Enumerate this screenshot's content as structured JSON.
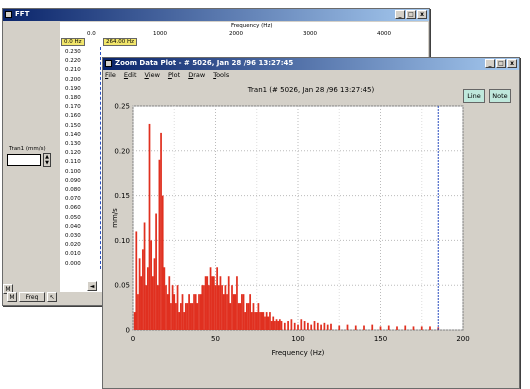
{
  "fft_window": {
    "title": "FFT",
    "controls": {
      "min": "_",
      "max": "□",
      "close": "x"
    },
    "x_axis_label": "Frequency (Hz)",
    "x_ticks": [
      "0.0",
      "1000",
      "2000",
      "3000",
      "4000"
    ],
    "cursor_left": "0.0 Hz",
    "cursor_right": "264.00 Hz",
    "y_ticks": [
      "0.230",
      "0.220",
      "0.210",
      "0.200",
      "0.190",
      "0.180",
      "0.170",
      "0.160",
      "0.150",
      "0.140",
      "0.130",
      "0.120",
      "0.110",
      "0.100",
      "0.090",
      "0.080",
      "0.070",
      "0.060",
      "0.050",
      "0.040",
      "0.030",
      "0.020",
      "0.010",
      "0.000"
    ],
    "y_top_box": "0.230",
    "y_bottom_box": "0.000",
    "channel_label": "Tran1 (mm/s)",
    "freq_button": "Freq"
  },
  "zoom_window": {
    "title": "Zoom Data Plot - # 5026, Jan 28 /96 13:27:45",
    "controls": {
      "min": "_",
      "max": "□",
      "close": "x"
    },
    "menu": [
      "File",
      "Edit",
      "View",
      "Plot",
      "Draw",
      "Tools"
    ],
    "plot_title": "Tran1   (# 5026, Jan 28 /96 13:27:45)",
    "buttons": {
      "line": "Line",
      "note": "Note"
    }
  },
  "chart_data": {
    "type": "bar",
    "xlabel": "Frequency (Hz)",
    "ylabel": "mm/s",
    "xlim": [
      0,
      200
    ],
    "ylim": [
      0,
      0.25
    ],
    "x_ticks": [
      0,
      50,
      100,
      150,
      200
    ],
    "y_ticks": [
      "0",
      "0.05",
      "0.10",
      "0.15",
      "0.20",
      "0.25"
    ],
    "grid": true,
    "color": "#e03020",
    "cursor_x": 185,
    "x": [
      1,
      2,
      3,
      4,
      5,
      6,
      7,
      8,
      9,
      10,
      11,
      12,
      13,
      14,
      15,
      16,
      17,
      18,
      19,
      20,
      21,
      22,
      23,
      24,
      25,
      26,
      27,
      28,
      29,
      30,
      31,
      32,
      33,
      34,
      35,
      36,
      37,
      38,
      39,
      40,
      41,
      42,
      43,
      44,
      45,
      46,
      47,
      48,
      49,
      50,
      51,
      52,
      53,
      54,
      55,
      56,
      57,
      58,
      59,
      60,
      61,
      62,
      63,
      64,
      65,
      66,
      67,
      68,
      69,
      70,
      71,
      72,
      73,
      74,
      75,
      76,
      77,
      78,
      79,
      80,
      81,
      82,
      83,
      84,
      85,
      86,
      87,
      88,
      89,
      90,
      92,
      94,
      96,
      98,
      100,
      102,
      104,
      106,
      108,
      110,
      112,
      114,
      116,
      118,
      120,
      125,
      130,
      135,
      140,
      145,
      150,
      155,
      160,
      165,
      170,
      175,
      180,
      185
    ],
    "values": [
      0.02,
      0.11,
      0.04,
      0.08,
      0.06,
      0.09,
      0.12,
      0.05,
      0.07,
      0.23,
      0.1,
      0.06,
      0.08,
      0.13,
      0.05,
      0.19,
      0.22,
      0.15,
      0.07,
      0.05,
      0.04,
      0.06,
      0.03,
      0.05,
      0.04,
      0.03,
      0.05,
      0.02,
      0.03,
      0.04,
      0.02,
      0.03,
      0.03,
      0.04,
      0.03,
      0.03,
      0.04,
      0.04,
      0.03,
      0.04,
      0.04,
      0.05,
      0.05,
      0.06,
      0.06,
      0.05,
      0.07,
      0.06,
      0.06,
      0.05,
      0.07,
      0.05,
      0.06,
      0.05,
      0.04,
      0.05,
      0.04,
      0.06,
      0.03,
      0.05,
      0.04,
      0.04,
      0.06,
      0.03,
      0.03,
      0.04,
      0.04,
      0.02,
      0.03,
      0.03,
      0.04,
      0.02,
      0.03,
      0.02,
      0.02,
      0.03,
      0.02,
      0.02,
      0.02,
      0.015,
      0.02,
      0.015,
      0.02,
      0.01,
      0.015,
      0.01,
      0.012,
      0.01,
      0.012,
      0.01,
      0.008,
      0.01,
      0.012,
      0.008,
      0.006,
      0.012,
      0.01,
      0.008,
      0.006,
      0.01,
      0.008,
      0.006,
      0.008,
      0.006,
      0.007,
      0.005,
      0.006,
      0.005,
      0.005,
      0.006,
      0.004,
      0.005,
      0.004,
      0.005,
      0.004,
      0.004,
      0.004,
      0.003
    ]
  }
}
